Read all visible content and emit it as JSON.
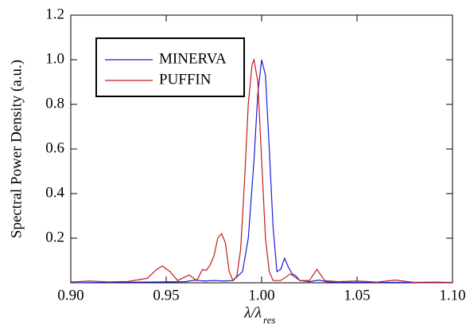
{
  "chart_data": {
    "type": "line",
    "xlabel": "λ/λ",
    "xlabel_subscript": "res",
    "ylabel": "Spectral Power Density (a.u.)",
    "xlim": [
      0.9,
      1.1
    ],
    "xticks": [
      {
        "value": 0.9,
        "label": "0.90"
      },
      {
        "value": 0.95,
        "label": "0.95"
      },
      {
        "value": 1,
        "label": "1.00"
      },
      {
        "value": 1.05,
        "label": "1.05"
      },
      {
        "value": 1.1,
        "label": "1.10"
      }
    ],
    "ylim": [
      0,
      1.2
    ],
    "yticks": [
      0.2,
      0.4,
      0.6,
      0.8,
      {
        "value": 1,
        "label": "1.0"
      },
      1.2
    ],
    "legend": "upper left",
    "series": [
      {
        "name": "MINERVA",
        "color": "#1a1adb",
        "x": [
          0.9,
          0.92,
          0.94,
          0.96,
          0.965,
          0.97,
          0.975,
          0.98,
          0.985,
          0.99,
          0.993,
          0.996,
          0.998,
          1.0,
          1.002,
          1.004,
          1.006,
          1.008,
          1.01,
          1.012,
          1.014,
          1.016,
          1.018,
          1.02,
          1.025,
          1.03,
          1.035,
          1.05,
          1.07,
          1.1
        ],
        "values": [
          0,
          0.002,
          0.003,
          0.005,
          0.012,
          0.008,
          0.01,
          0.008,
          0.01,
          0.05,
          0.2,
          0.55,
          0.85,
          1.0,
          0.93,
          0.6,
          0.25,
          0.05,
          0.06,
          0.11,
          0.07,
          0.04,
          0.03,
          0.01,
          0.005,
          0.012,
          0.003,
          0.002,
          0.002,
          0.001
        ]
      },
      {
        "name": "PUFFIN",
        "color": "#c41a1a",
        "x": [
          0.9,
          0.91,
          0.92,
          0.93,
          0.94,
          0.945,
          0.948,
          0.952,
          0.956,
          0.962,
          0.966,
          0.969,
          0.971,
          0.973,
          0.975,
          0.977,
          0.979,
          0.981,
          0.983,
          0.985,
          0.987,
          0.989,
          0.991,
          0.993,
          0.995,
          0.996,
          0.998,
          1.0,
          1.002,
          1.004,
          1.006,
          1.01,
          1.015,
          1.02,
          1.025,
          1.029,
          1.033,
          1.04,
          1.05,
          1.06,
          1.07,
          1.08,
          1.09,
          1.1
        ],
        "values": [
          0.003,
          0.008,
          0.004,
          0.006,
          0.02,
          0.06,
          0.075,
          0.05,
          0.01,
          0.035,
          0.01,
          0.06,
          0.055,
          0.08,
          0.12,
          0.2,
          0.22,
          0.18,
          0.05,
          0.01,
          0.03,
          0.15,
          0.45,
          0.8,
          0.98,
          1.0,
          0.9,
          0.55,
          0.2,
          0.05,
          0.01,
          0.01,
          0.04,
          0.01,
          0.01,
          0.06,
          0.01,
          0.005,
          0.008,
          0.003,
          0.012,
          0.002,
          0.003,
          0.002
        ]
      }
    ]
  }
}
